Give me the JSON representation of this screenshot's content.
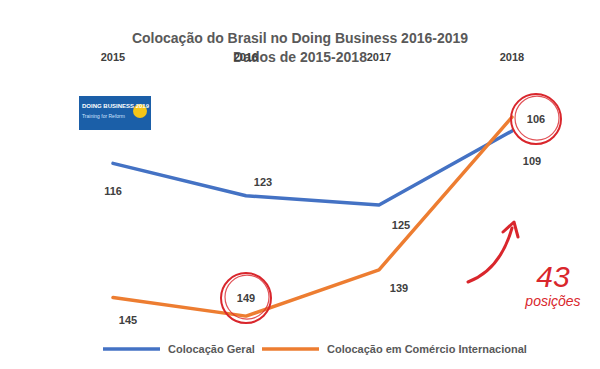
{
  "chart_data": {
    "type": "line",
    "title": "Colocação do Brasil no Doing Business 2016-2019",
    "subtitle": "Dados de 2015-2018",
    "categories": [
      "2015",
      "2016",
      "2017",
      "2018"
    ],
    "series": [
      {
        "name": "Colocação Geral",
        "color": "#4472c4",
        "values": [
          116,
          123,
          125,
          109
        ]
      },
      {
        "name": "Colocação em Comércio Internacional",
        "color": "#ed7d31",
        "values": [
          145,
          149,
          139,
          106
        ]
      }
    ],
    "ylim": [
      152,
      98
    ],
    "grid": false,
    "tick_labels": "x",
    "data_labels": true,
    "legend": "bottom",
    "annotations": [
      "43",
      "posições"
    ],
    "logo": [
      "DOING BUSINESS 2019",
      "Training for Reform"
    ]
  }
}
